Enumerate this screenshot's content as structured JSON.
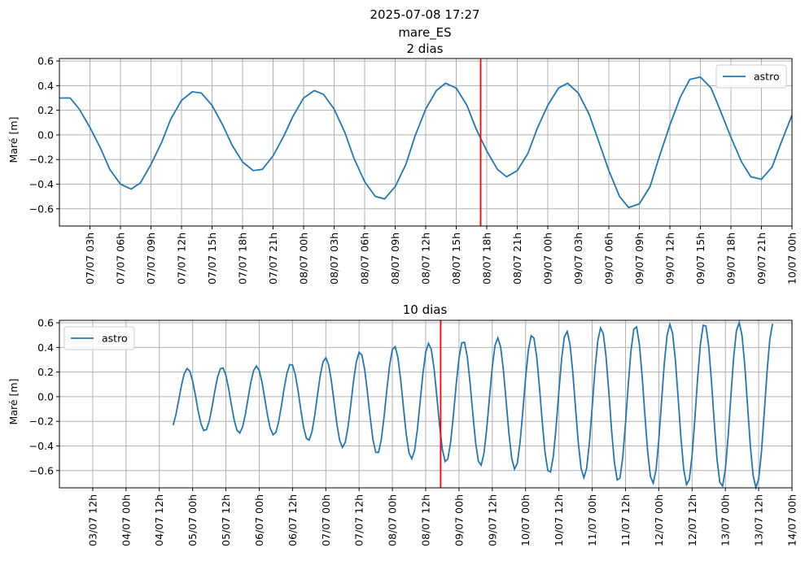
{
  "figure": {
    "title_lines": [
      "2025-07-08 17:27",
      "mare_ES",
      "2 dias"
    ],
    "colors": {
      "series": "#1f77b4",
      "now_line": "#ff0000",
      "grid": "#b0b0b0"
    }
  },
  "chart_data": [
    {
      "type": "line",
      "title": "2 dias",
      "ylabel": "Maré [m]",
      "xlim": [
        0,
        48
      ],
      "ylim": [
        -0.74,
        0.62
      ],
      "yticks": [
        -0.6,
        -0.4,
        -0.2,
        0.0,
        0.2,
        0.4,
        0.6
      ],
      "ytick_labels": [
        "−0.6",
        "−0.4",
        "−0.2",
        "0.0",
        "0.2",
        "0.4",
        "0.6"
      ],
      "xtick_hours": [
        2,
        4,
        6,
        8,
        10,
        12,
        14,
        16,
        18,
        20,
        22,
        24,
        26,
        28,
        30,
        32,
        34,
        36,
        38,
        40,
        42,
        44,
        46,
        48
      ],
      "xtick_labels": [
        "07/07 03h",
        "07/07 06h",
        "07/07 09h",
        "07/07 12h",
        "07/07 15h",
        "07/07 18h",
        "07/07 21h",
        "08/07 00h",
        "08/07 03h",
        "08/07 06h",
        "08/07 09h",
        "08/07 12h",
        "08/07 15h",
        "08/07 18h",
        "08/07 21h",
        "09/07 00h",
        "09/07 03h",
        "09/07 06h",
        "09/07 09h",
        "09/07 12h",
        "09/07 15h",
        "09/07 18h",
        "09/07 21h",
        "10/07 00h"
      ],
      "grid": true,
      "legend": {
        "entries": [
          "astro"
        ],
        "loc": "upper right"
      },
      "now_line_x": 27.6,
      "series": [
        {
          "name": "astro",
          "x": [
            0,
            0.7,
            1.3,
            2,
            2.7,
            3.3,
            4,
            4.7,
            5.3,
            6,
            6.7,
            7.3,
            8,
            8.7,
            9.3,
            10,
            10.7,
            11.3,
            12,
            12.7,
            13.3,
            14,
            14.7,
            15.3,
            16,
            16.7,
            17.3,
            18,
            18.7,
            19.3,
            20,
            20.7,
            21.3,
            22,
            22.7,
            23.3,
            24,
            24.7,
            25.3,
            26,
            26.7,
            27.3,
            28,
            28.7,
            29.3,
            30,
            30.7,
            31.3,
            32,
            32.7,
            33.3,
            34,
            34.7,
            35.3,
            36,
            36.7,
            37.3,
            38,
            38.7,
            39.3,
            40,
            40.7,
            41.3,
            42,
            42.7,
            43.3,
            44,
            44.7,
            45.3,
            46,
            46.7,
            47.3,
            48
          ],
          "y": [
            0.3,
            0.3,
            0.21,
            0.06,
            -0.11,
            -0.28,
            -0.4,
            -0.44,
            -0.39,
            -0.24,
            -0.06,
            0.13,
            0.28,
            0.35,
            0.34,
            0.24,
            0.08,
            -0.08,
            -0.22,
            -0.29,
            -0.28,
            -0.17,
            -0.01,
            0.15,
            0.3,
            0.36,
            0.33,
            0.21,
            0.02,
            -0.19,
            -0.38,
            -0.5,
            -0.52,
            -0.42,
            -0.24,
            -0.01,
            0.21,
            0.36,
            0.42,
            0.38,
            0.24,
            0.05,
            -0.13,
            -0.28,
            -0.34,
            -0.29,
            -0.15,
            0.05,
            0.24,
            0.38,
            0.42,
            0.34,
            0.17,
            -0.04,
            -0.29,
            -0.5,
            -0.59,
            -0.56,
            -0.42,
            -0.18,
            0.08,
            0.31,
            0.45,
            0.47,
            0.38,
            0.2,
            -0.02,
            -0.22,
            -0.34,
            -0.36,
            -0.26,
            -0.06,
            0.16
          ]
        }
      ]
    },
    {
      "type": "line",
      "title": "10 dias",
      "ylabel": "Maré [m]",
      "xlim": [
        0,
        264
      ],
      "ylim": [
        -0.74,
        0.62
      ],
      "yticks": [
        -0.6,
        -0.4,
        -0.2,
        0.0,
        0.2,
        0.4,
        0.6
      ],
      "ytick_labels": [
        "−0.6",
        "−0.4",
        "−0.2",
        "0.0",
        "0.2",
        "0.4",
        "0.6"
      ],
      "xtick_hours": [
        12,
        24,
        36,
        48,
        60,
        72,
        84,
        96,
        108,
        120,
        132,
        144,
        156,
        168,
        180,
        192,
        204,
        216,
        228,
        240,
        252,
        264
      ],
      "xtick_labels": [
        "03/07 12h",
        "04/07 00h",
        "04/07 12h",
        "05/07 00h",
        "05/07 12h",
        "06/07 00h",
        "06/07 12h",
        "07/07 00h",
        "07/07 12h",
        "08/07 00h",
        "08/07 12h",
        "09/07 00h",
        "09/07 12h",
        "10/07 00h",
        "10/07 12h",
        "11/07 00h",
        "11/07 12h",
        "12/07 00h",
        "12/07 12h",
        "13/07 00h",
        "13/07 12h",
        "14/07 00h"
      ],
      "grid": true,
      "legend": {
        "entries": [
          "astro"
        ],
        "loc": "upper left"
      },
      "now_line_x": 137.4,
      "series": [
        {
          "name": "astro",
          "x_start": 41,
          "x_end": 257,
          "x_step": 1,
          "amplitude": [
            [
              41,
              0.245
            ],
            [
              80,
              0.285
            ],
            [
              120,
              0.45
            ],
            [
              160,
              0.53
            ],
            [
              200,
              0.63
            ],
            [
              240,
              0.67
            ],
            [
              257,
              0.67
            ]
          ],
          "offset": [
            [
              41,
              -0.02
            ],
            [
              120,
              -0.04
            ],
            [
              257,
              -0.07
            ]
          ],
          "period_hours": 12.42,
          "phase_ref_hour": 136.2,
          "phase_ref_value": 0.0,
          "phase_ref_rising": false
        }
      ]
    }
  ]
}
